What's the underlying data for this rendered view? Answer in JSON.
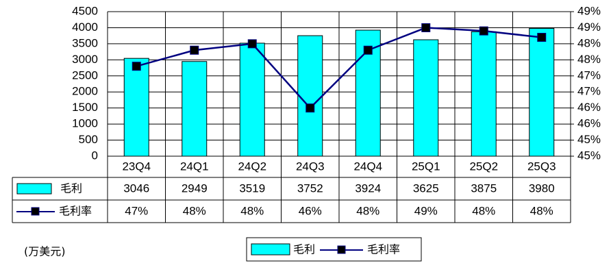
{
  "chart_data": {
    "type": "bar",
    "unit_note": "(万美元)",
    "categories": [
      "23Q4",
      "24Q1",
      "24Q2",
      "24Q3",
      "24Q4",
      "25Q1",
      "25Q2",
      "25Q3"
    ],
    "series": [
      {
        "name": "毛利",
        "type": "bar",
        "color": "#00ffff",
        "values": [
          3046,
          2949,
          3519,
          3752,
          3924,
          3625,
          3875,
          3980
        ]
      },
      {
        "name": "毛利率",
        "type": "line",
        "axis": "y2",
        "color": "#000080",
        "values": [
          47.3,
          47.8,
          48.0,
          46.0,
          47.8,
          48.5,
          48.4,
          48.2
        ],
        "value_labels": [
          "47%",
          "48%",
          "48%",
          "46%",
          "48%",
          "49%",
          "48%",
          "48%"
        ]
      }
    ],
    "ylim": [
      0,
      4500
    ],
    "yticks": [
      0,
      500,
      1000,
      1500,
      2000,
      2500,
      3000,
      3500,
      4000,
      4500
    ],
    "y2lim": [
      44.5,
      49
    ],
    "y2ticks": [
      {
        "value": 44.5,
        "label": "45%"
      },
      {
        "value": 45,
        "label": "45%"
      },
      {
        "value": 45.5,
        "label": "46%"
      },
      {
        "value": 46,
        "label": "46%"
      },
      {
        "value": 46.5,
        "label": "47%"
      },
      {
        "value": 47,
        "label": "47%"
      },
      {
        "value": 47.5,
        "label": "48%"
      },
      {
        "value": 48,
        "label": "48%"
      },
      {
        "value": 48.5,
        "label": "49%"
      },
      {
        "value": 49,
        "label": "49%"
      }
    ],
    "grid": true
  }
}
